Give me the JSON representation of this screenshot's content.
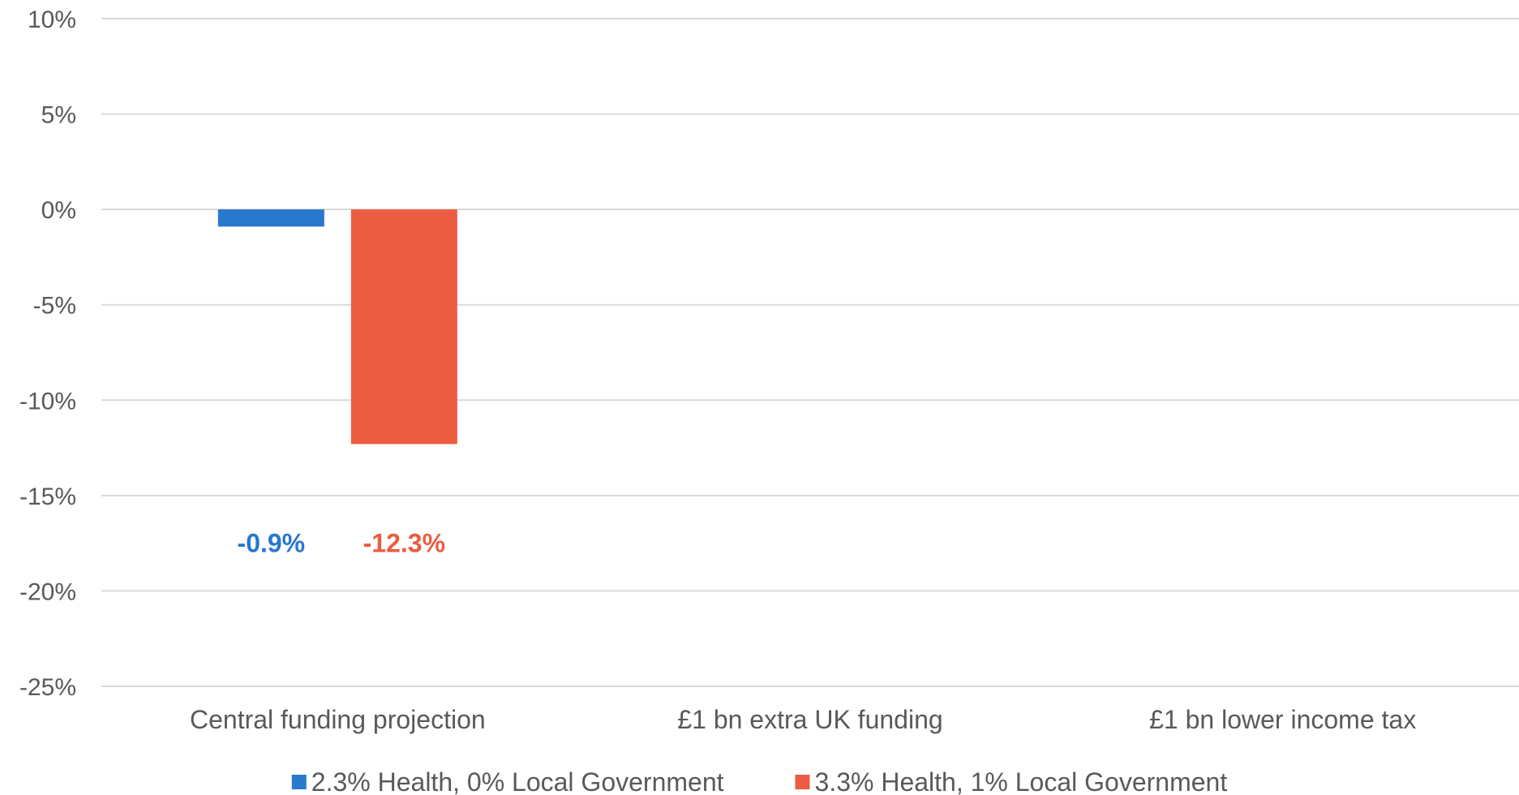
{
  "chart_data": {
    "type": "bar",
    "categories": [
      "Central funding projection",
      "£1 bn extra UK funding",
      "£1 bn lower income tax"
    ],
    "series": [
      {
        "name": "2.3% Health, 0% Local Government",
        "color": "#2878cd",
        "values": [
          -0.9,
          null,
          null
        ],
        "labels": [
          "-0.9%",
          "",
          ""
        ]
      },
      {
        "name": "3.3% Health, 1% Local Government",
        "color": "#ec5c42",
        "values": [
          -12.3,
          null,
          null
        ],
        "labels": [
          "-12.3%",
          "",
          ""
        ]
      }
    ],
    "ylim": [
      -25,
      10
    ],
    "yticks": [
      10,
      5,
      0,
      -5,
      -10,
      -15,
      -20,
      -25
    ],
    "ytick_labels": [
      "10%",
      "5%",
      "0%",
      "-5%",
      "-10%",
      "-15%",
      "-20%",
      "-25%"
    ],
    "grid": true,
    "legend_position": "bottom",
    "data_label_value": -17.5,
    "title": "",
    "xlabel": "",
    "ylabel": ""
  }
}
